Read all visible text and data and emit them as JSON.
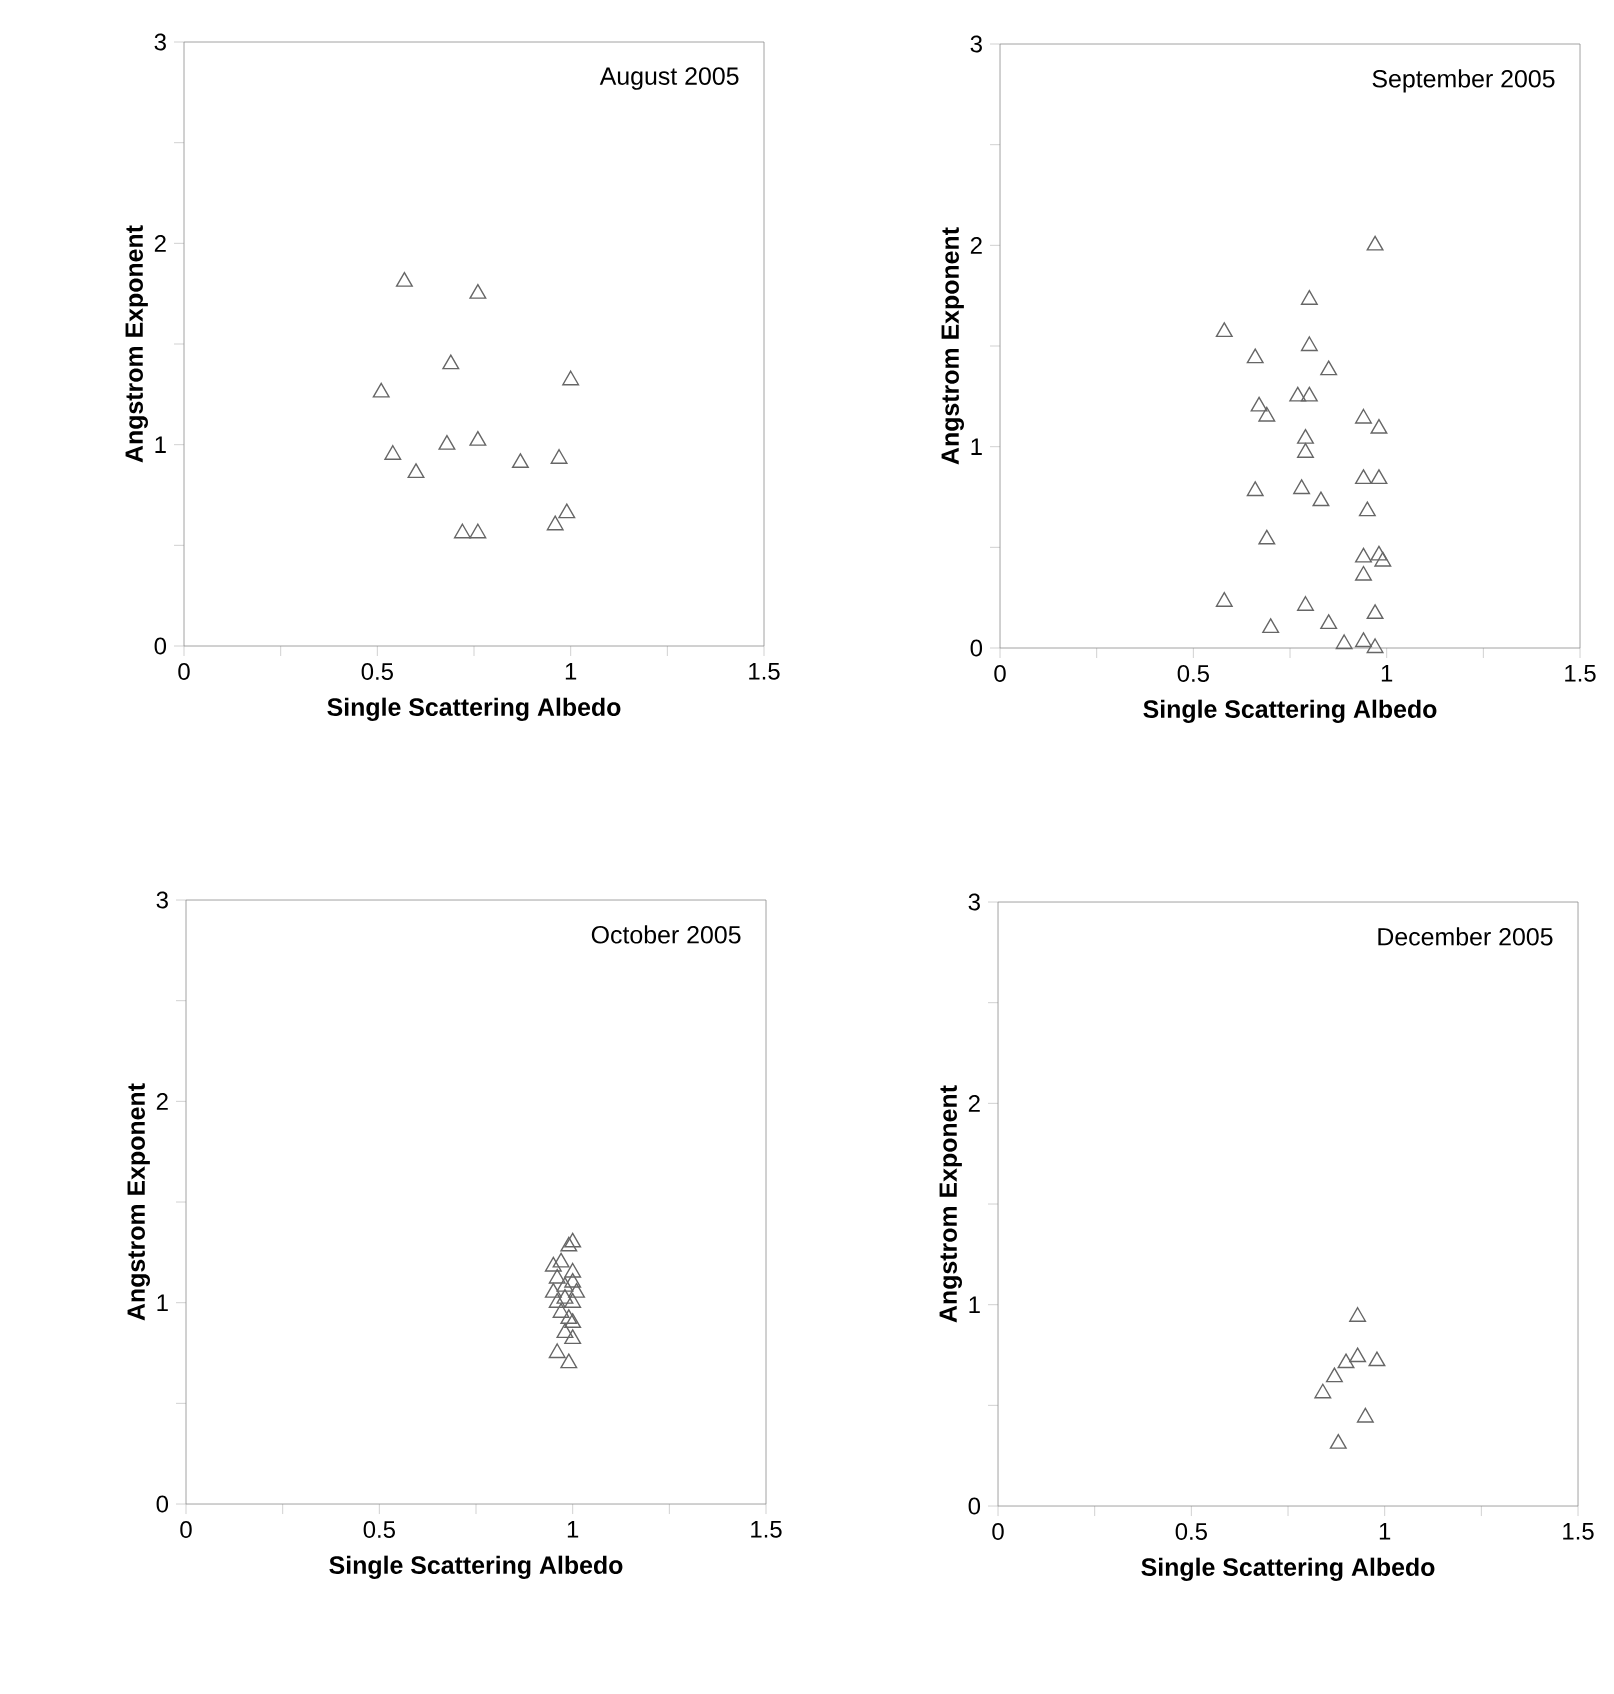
{
  "chart_data": [
    {
      "type": "scatter",
      "title": "August 2005",
      "xlabel": "Single Scattering Albedo",
      "ylabel": "Angstrom Exponent",
      "color": "#666666",
      "marker": "triangle",
      "xlim": [
        0,
        1.5
      ],
      "ylim": [
        0,
        3
      ],
      "xticks": [
        0,
        {
          "value": 0.25,
          "label": null
        },
        0.5,
        {
          "value": 0.75,
          "label": null
        },
        1,
        {
          "value": 1.25,
          "label": null
        },
        1.5
      ],
      "yticks": [
        0,
        {
          "value": 0.5,
          "label": null
        },
        1,
        {
          "value": 1.5,
          "label": null
        },
        2,
        {
          "value": 2.5,
          "label": null
        },
        3
      ],
      "x": [
        0.57,
        0.76,
        0.69,
        0.51,
        1.0,
        0.54,
        0.6,
        0.68,
        0.76,
        0.87,
        0.97,
        0.99,
        0.96,
        0.72,
        0.76
      ],
      "values": [
        1.81,
        1.75,
        1.4,
        1.26,
        1.32,
        0.95,
        0.86,
        1.0,
        1.02,
        0.91,
        0.93,
        0.66,
        0.6,
        0.56,
        0.56
      ]
    },
    {
      "type": "scatter",
      "title": "September 2005",
      "xlabel": "Single Scattering Albedo",
      "ylabel": "Angstrom Exponent",
      "color": "#666666",
      "marker": "triangle",
      "xlim": [
        0,
        1.5
      ],
      "ylim": [
        0,
        3
      ],
      "xticks": [
        0,
        {
          "value": 0.25,
          "label": null
        },
        0.5,
        {
          "value": 0.75,
          "label": null
        },
        1,
        {
          "value": 1.25,
          "label": null
        },
        1.5
      ],
      "yticks": [
        0,
        {
          "value": 0.5,
          "label": null
        },
        1,
        {
          "value": 1.5,
          "label": null
        },
        2,
        {
          "value": 2.5,
          "label": null
        },
        3
      ],
      "x": [
        0.97,
        0.8,
        0.58,
        0.66,
        0.8,
        0.85,
        0.77,
        0.8,
        0.67,
        0.69,
        0.94,
        0.98,
        0.79,
        0.79,
        0.94,
        0.98,
        0.66,
        0.78,
        0.83,
        0.95,
        0.69,
        0.94,
        0.98,
        0.99,
        0.94,
        0.58,
        0.79,
        0.97,
        0.7,
        0.85,
        0.89,
        0.94,
        0.97
      ],
      "values": [
        2.0,
        1.73,
        1.57,
        1.44,
        1.5,
        1.38,
        1.25,
        1.25,
        1.2,
        1.15,
        1.14,
        1.09,
        1.04,
        0.97,
        0.84,
        0.84,
        0.78,
        0.79,
        0.73,
        0.68,
        0.54,
        0.45,
        0.46,
        0.43,
        0.36,
        0.23,
        0.21,
        0.17,
        0.1,
        0.12,
        0.02,
        0.03,
        0.0
      ]
    },
    {
      "type": "scatter",
      "title": "October 2005",
      "xlabel": "Single Scattering Albedo",
      "ylabel": "Angstrom Exponent",
      "color": "#666666",
      "marker": "triangle",
      "xlim": [
        0,
        1.5
      ],
      "ylim": [
        0,
        3
      ],
      "xticks": [
        0,
        {
          "value": 0.25,
          "label": null
        },
        0.5,
        {
          "value": 0.75,
          "label": null
        },
        1,
        {
          "value": 1.25,
          "label": null
        },
        1.5
      ],
      "yticks": [
        0,
        {
          "value": 0.5,
          "label": null
        },
        1,
        {
          "value": 1.5,
          "label": null
        },
        2,
        {
          "value": 2.5,
          "label": null
        },
        3
      ],
      "x": [
        0.97,
        0.99,
        1.0,
        0.96,
        1.0,
        0.95,
        0.98,
        1.0,
        0.96,
        0.98,
        1.0,
        0.97,
        0.99,
        1.0,
        0.98,
        1.0,
        0.96,
        0.99,
        0.95,
        1.01
      ],
      "values": [
        1.2,
        1.28,
        1.3,
        1.12,
        1.15,
        1.05,
        1.08,
        1.1,
        1.0,
        1.02,
        1.0,
        0.95,
        0.92,
        0.9,
        0.85,
        0.82,
        0.75,
        0.7,
        1.18,
        1.05
      ]
    },
    {
      "type": "scatter",
      "title": "December 2005",
      "xlabel": "Single Scattering Albedo",
      "ylabel": "Angstrom Exponent",
      "color": "#666666",
      "marker": "triangle",
      "xlim": [
        0,
        1.5
      ],
      "ylim": [
        0,
        3
      ],
      "xticks": [
        0,
        {
          "value": 0.25,
          "label": null
        },
        0.5,
        {
          "value": 0.75,
          "label": null
        },
        1,
        {
          "value": 1.25,
          "label": null
        },
        1.5
      ],
      "yticks": [
        0,
        {
          "value": 0.5,
          "label": null
        },
        1,
        {
          "value": 1.5,
          "label": null
        },
        2,
        {
          "value": 2.5,
          "label": null
        },
        3
      ],
      "x": [
        0.93,
        0.9,
        0.93,
        0.98,
        0.87,
        0.84,
        0.95,
        0.88
      ],
      "values": [
        0.94,
        0.71,
        0.74,
        0.72,
        0.64,
        0.56,
        0.44,
        0.31
      ]
    }
  ]
}
